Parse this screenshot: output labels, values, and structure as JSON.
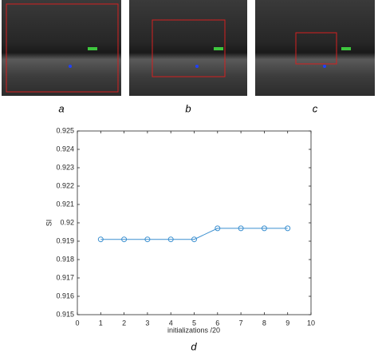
{
  "panel_labels": [
    "a",
    "b",
    "c",
    "d"
  ],
  "chart_data": {
    "type": "line",
    "ylabel": "SI",
    "xlabel": "initializations /20",
    "x": [
      1,
      2,
      3,
      4,
      5,
      6,
      7,
      8,
      9
    ],
    "values": [
      0.9191,
      0.9191,
      0.9191,
      0.9191,
      0.9191,
      0.9197,
      0.9197,
      0.9197,
      0.9197
    ],
    "color": "#3a8fd0",
    "marker": "circle",
    "xlim": [
      0,
      10
    ],
    "xticks": [
      0,
      1,
      2,
      3,
      4,
      5,
      6,
      7,
      8,
      9,
      10
    ],
    "ylim": [
      0.915,
      0.925
    ],
    "yticks": [
      0.915,
      0.916,
      0.917,
      0.918,
      0.919,
      0.92,
      0.921,
      0.922,
      0.923,
      0.924,
      0.925
    ]
  }
}
